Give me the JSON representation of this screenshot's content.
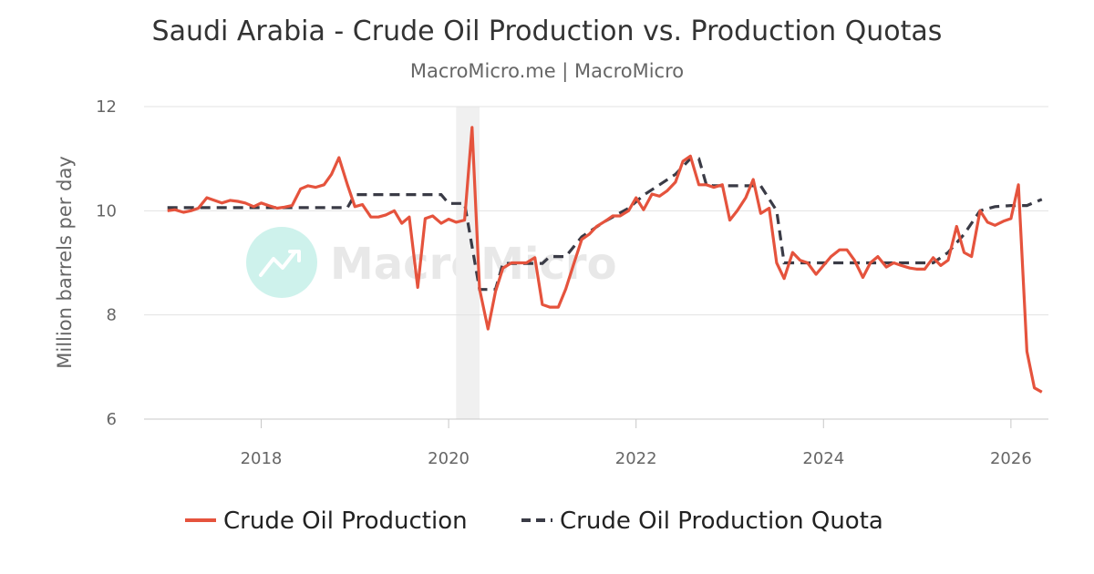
{
  "chart_data": {
    "type": "line",
    "title": "Saudi Arabia - Crude Oil Production vs. Production Quotas",
    "subtitle": "MacroMicro.me | MacroMicro",
    "watermark": "MacroMicro",
    "ylabel": "Million barrels per day",
    "xlabel": "",
    "ylim": [
      6,
      12
    ],
    "yticks": [
      6,
      8,
      10,
      12
    ],
    "xlim": [
      2016.75,
      2026.4
    ],
    "xticks": [
      2018,
      2020,
      2022,
      2024,
      2026
    ],
    "grid": true,
    "legend_position": "bottom",
    "shaded_period": [
      2020.08,
      2020.33
    ],
    "series": [
      {
        "name": "Crude Oil Production",
        "color": "#e5533d",
        "dash": "solid",
        "x": [
          2017.0,
          2017.08,
          2017.17,
          2017.25,
          2017.33,
          2017.42,
          2017.5,
          2017.58,
          2017.67,
          2017.75,
          2017.83,
          2017.92,
          2018.0,
          2018.08,
          2018.17,
          2018.25,
          2018.33,
          2018.42,
          2018.5,
          2018.58,
          2018.67,
          2018.75,
          2018.83,
          2018.92,
          2019.0,
          2019.08,
          2019.17,
          2019.25,
          2019.33,
          2019.42,
          2019.5,
          2019.58,
          2019.67,
          2019.75,
          2019.83,
          2019.92,
          2020.0,
          2020.08,
          2020.17,
          2020.25,
          2020.33,
          2020.42,
          2020.5,
          2020.58,
          2020.67,
          2020.75,
          2020.83,
          2020.92,
          2021.0,
          2021.08,
          2021.17,
          2021.25,
          2021.33,
          2021.42,
          2021.5,
          2021.58,
          2021.67,
          2021.75,
          2021.83,
          2021.92,
          2022.0,
          2022.08,
          2022.17,
          2022.25,
          2022.33,
          2022.42,
          2022.5,
          2022.58,
          2022.67,
          2022.75,
          2022.83,
          2022.92,
          2023.0,
          2023.08,
          2023.17,
          2023.25,
          2023.33,
          2023.42,
          2023.5,
          2023.58,
          2023.67,
          2023.75,
          2023.83,
          2023.92,
          2024.0,
          2024.08,
          2024.17,
          2024.25,
          2024.33,
          2024.42,
          2024.5,
          2024.58,
          2024.67,
          2024.75,
          2024.83,
          2024.92,
          2025.0,
          2025.08,
          2025.17,
          2025.25,
          2025.33,
          2025.42,
          2025.5,
          2025.58,
          2025.67,
          2025.75,
          2025.83,
          2025.92,
          2026.0,
          2026.08,
          2026.17,
          2026.25,
          2026.33
        ],
        "values": [
          10.0,
          10.02,
          9.97,
          10.0,
          10.05,
          10.25,
          10.2,
          10.15,
          10.2,
          10.18,
          10.15,
          10.08,
          10.15,
          10.1,
          10.05,
          10.07,
          10.1,
          10.42,
          10.48,
          10.45,
          10.5,
          10.7,
          11.02,
          10.5,
          10.08,
          10.12,
          9.88,
          9.88,
          9.92,
          10.0,
          9.76,
          9.88,
          8.53,
          9.85,
          9.9,
          9.76,
          9.84,
          9.78,
          9.82,
          11.6,
          8.5,
          7.73,
          8.45,
          8.9,
          9.0,
          9.0,
          9.0,
          9.1,
          8.2,
          8.15,
          8.15,
          8.5,
          8.95,
          9.45,
          9.55,
          9.7,
          9.8,
          9.9,
          9.9,
          10.0,
          10.25,
          10.02,
          10.32,
          10.28,
          10.38,
          10.55,
          10.95,
          11.05,
          10.5,
          10.5,
          10.45,
          10.5,
          9.82,
          10.0,
          10.25,
          10.6,
          9.95,
          10.05,
          9.0,
          8.7,
          9.2,
          9.05,
          9.0,
          8.78,
          8.95,
          9.12,
          9.25,
          9.25,
          9.05,
          8.72,
          9.0,
          9.12,
          8.92,
          9.0,
          8.95,
          8.9,
          8.88,
          8.88,
          9.1,
          8.95,
          9.05,
          9.7,
          9.2,
          9.12,
          10.0,
          9.78,
          9.72,
          9.8,
          9.85,
          10.5,
          7.3,
          6.6,
          6.52
        ]
      },
      {
        "name": "Crude Oil Production Quota",
        "color": "#3a3b46",
        "dash": "dashed",
        "x": [
          2017.0,
          2018.92,
          2019.0,
          2019.92,
          2020.0,
          2020.17,
          2020.33,
          2020.5,
          2020.58,
          2021.0,
          2021.08,
          2021.25,
          2021.42,
          2021.67,
          2021.92,
          2022.08,
          2022.25,
          2022.42,
          2022.58,
          2022.67,
          2022.75,
          2022.83,
          2023.33,
          2023.5,
          2023.58,
          2024.0,
          2025.0,
          2025.17,
          2025.33,
          2025.5,
          2025.67,
          2025.83,
          2026.0,
          2026.17,
          2026.33
        ],
        "values": [
          10.06,
          10.06,
          10.31,
          10.31,
          10.14,
          10.14,
          8.49,
          8.49,
          8.99,
          8.99,
          9.12,
          9.12,
          9.5,
          9.8,
          10.05,
          10.3,
          10.5,
          10.7,
          11.0,
          11.0,
          10.5,
          10.48,
          10.48,
          10.0,
          9.0,
          9.0,
          9.0,
          9.0,
          9.2,
          9.55,
          10.0,
          10.08,
          10.1,
          10.1,
          10.22
        ]
      }
    ]
  }
}
